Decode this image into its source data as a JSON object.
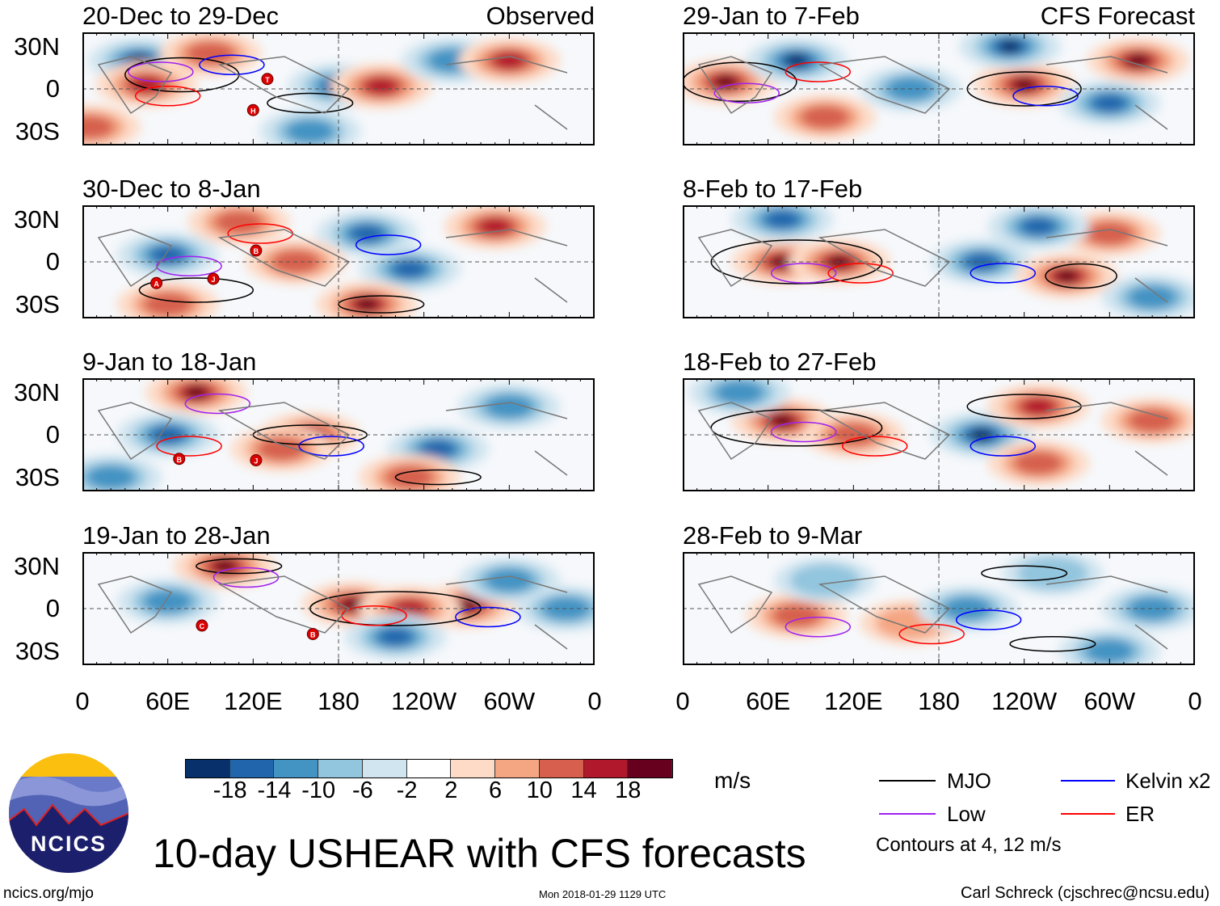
{
  "panels": [
    {
      "title": "20-Dec to 29-Dec",
      "label": "Observed",
      "col": 0,
      "row": 0,
      "blobs": [
        [
          40,
          20,
          -16
        ],
        [
          45,
          3,
          14
        ],
        [
          90,
          25,
          8
        ],
        [
          180,
          2,
          -18
        ],
        [
          210,
          2,
          14
        ],
        [
          260,
          20,
          -10
        ],
        [
          300,
          20,
          12
        ],
        [
          160,
          -30,
          -10
        ],
        [
          5,
          -27,
          10
        ]
      ],
      "mjo": [
        [
          70,
          10,
          40,
          14
        ],
        [
          160,
          -10,
          30,
          8
        ]
      ],
      "storms": [
        {
          "letter": "T",
          "lon": 130,
          "lat": 7
        },
        {
          "letter": "H",
          "lon": 120,
          "lat": -15
        }
      ]
    },
    {
      "title": "30-Dec to 8-Jan",
      "label": "",
      "col": 0,
      "row": 1,
      "blobs": [
        [
          60,
          5,
          -12
        ],
        [
          110,
          28,
          10
        ],
        [
          200,
          20,
          -12
        ],
        [
          230,
          -5,
          -14
        ],
        [
          290,
          25,
          14
        ],
        [
          200,
          -30,
          16
        ],
        [
          60,
          -30,
          8
        ],
        [
          150,
          0,
          10
        ]
      ],
      "mjo": [
        [
          210,
          -30,
          30,
          7
        ],
        [
          80,
          -20,
          40,
          10
        ]
      ],
      "storms": [
        {
          "letter": "B",
          "lon": 122,
          "lat": 8
        },
        {
          "letter": "J",
          "lon": 92,
          "lat": -12
        },
        {
          "letter": "A",
          "lon": 52,
          "lat": -15
        }
      ]
    },
    {
      "title": "9-Jan to 18-Jan",
      "label": "",
      "col": 0,
      "row": 2,
      "blobs": [
        [
          80,
          30,
          16
        ],
        [
          60,
          0,
          -12
        ],
        [
          160,
          0,
          14
        ],
        [
          140,
          -10,
          10
        ],
        [
          250,
          -10,
          -14
        ],
        [
          300,
          20,
          -10
        ],
        [
          230,
          -30,
          10
        ],
        [
          20,
          -30,
          -8
        ]
      ],
      "mjo": [
        [
          160,
          0,
          40,
          8
        ],
        [
          250,
          -30,
          30,
          6
        ]
      ],
      "storms": [
        {
          "letter": "B",
          "lon": 68,
          "lat": -17
        },
        {
          "letter": "J",
          "lon": 122,
          "lat": -18
        }
      ]
    },
    {
      "title": "19-Jan to 28-Jan",
      "label": "",
      "col": 0,
      "row": 3,
      "blobs": [
        [
          100,
          30,
          16
        ],
        [
          190,
          3,
          18
        ],
        [
          270,
          2,
          16
        ],
        [
          230,
          0,
          12
        ],
        [
          60,
          5,
          -10
        ],
        [
          220,
          -20,
          -12
        ],
        [
          340,
          0,
          -10
        ],
        [
          300,
          20,
          -8
        ]
      ],
      "mjo": [
        [
          220,
          0,
          60,
          14
        ],
        [
          110,
          30,
          30,
          6
        ]
      ],
      "storms": [
        {
          "letter": "C",
          "lon": 84,
          "lat": -12
        },
        {
          "letter": "B",
          "lon": 162,
          "lat": -18
        }
      ]
    },
    {
      "title": "29-Jan to 7-Feb",
      "label": "CFS Forecast",
      "col": 1,
      "row": 0,
      "blobs": [
        [
          30,
          5,
          18
        ],
        [
          80,
          20,
          -16
        ],
        [
          240,
          3,
          18
        ],
        [
          320,
          20,
          16
        ],
        [
          230,
          30,
          -16
        ],
        [
          300,
          -10,
          -12
        ],
        [
          100,
          -20,
          8
        ],
        [
          160,
          0,
          -8
        ]
      ],
      "mjo": [
        [
          40,
          5,
          40,
          16
        ],
        [
          240,
          0,
          40,
          14
        ]
      ],
      "storms": []
    },
    {
      "title": "8-Feb to 17-Feb",
      "label": "",
      "col": 1,
      "row": 1,
      "blobs": [
        [
          70,
          0,
          18
        ],
        [
          110,
          0,
          16
        ],
        [
          210,
          0,
          -14
        ],
        [
          270,
          -10,
          16
        ],
        [
          300,
          20,
          10
        ],
        [
          70,
          30,
          -14
        ],
        [
          250,
          25,
          -12
        ],
        [
          330,
          -25,
          -10
        ]
      ],
      "mjo": [
        [
          80,
          0,
          60,
          18
        ],
        [
          280,
          -10,
          25,
          10
        ]
      ],
      "storms": []
    },
    {
      "title": "18-Feb to 27-Feb",
      "label": "",
      "col": 1,
      "row": 2,
      "blobs": [
        [
          70,
          10,
          16
        ],
        [
          120,
          0,
          10
        ],
        [
          210,
          0,
          -16
        ],
        [
          250,
          20,
          12
        ],
        [
          250,
          -20,
          10
        ],
        [
          330,
          10,
          8
        ],
        [
          40,
          30,
          -8
        ]
      ],
      "mjo": [
        [
          80,
          5,
          60,
          15
        ],
        [
          240,
          20,
          40,
          10
        ]
      ],
      "storms": []
    },
    {
      "title": "28-Feb to 9-Mar",
      "label": "",
      "col": 1,
      "row": 3,
      "blobs": [
        [
          80,
          -5,
          8
        ],
        [
          160,
          -10,
          6
        ],
        [
          200,
          0,
          -10
        ],
        [
          330,
          0,
          -10
        ],
        [
          260,
          25,
          -6
        ],
        [
          300,
          -30,
          -8
        ],
        [
          100,
          20,
          -6
        ]
      ],
      "mjo": [
        [
          260,
          -25,
          30,
          6
        ],
        [
          240,
          25,
          30,
          6
        ]
      ],
      "storms": []
    }
  ],
  "lat_ticks": [
    "30N",
    "0",
    "30S"
  ],
  "lon_ticks": [
    "0",
    "60E",
    "120E",
    "180",
    "120W",
    "60W",
    "0"
  ],
  "colorbar": {
    "colors": [
      "#08306b",
      "#2166ac",
      "#4393c3",
      "#92c5de",
      "#d1e5f0",
      "#ffffff",
      "#fddbc7",
      "#f4a582",
      "#d6604d",
      "#b2182b",
      "#67001f"
    ],
    "labels": [
      "-18",
      "-14",
      "-10",
      "-6",
      "-2",
      "2",
      "6",
      "10",
      "14",
      "18"
    ],
    "units": "m/s"
  },
  "legend": {
    "items": [
      {
        "label": "MJO",
        "color": "#000000"
      },
      {
        "label": "Kelvin x2",
        "color": "#0000ff"
      },
      {
        "label": "Low",
        "color": "#a020f0"
      },
      {
        "label": "ER",
        "color": "#ff0000"
      }
    ],
    "note": "Contours at 4, 12 m/s"
  },
  "title": "10-day USHEAR with CFS forecasts",
  "logo_text": "NCICS",
  "footer": {
    "url": "ncics.org/mjo",
    "timestamp": "Mon 2018-01-29 1129 UTC",
    "author": "Carl Schreck (cjschrec@ncsu.edu)"
  }
}
